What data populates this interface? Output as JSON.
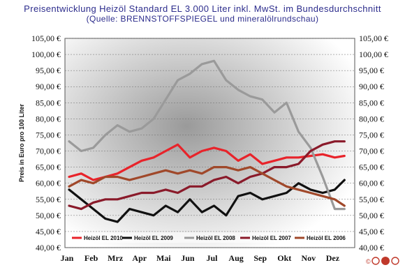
{
  "chart_data": {
    "type": "line",
    "title": "Preisentwicklung Heizöl Standard EL 3.000 Liter inkl. MwSt. im Bundesdurchschnitt",
    "subtitle": "(Quelle: BRENNSTOFFSPIEGEL und mineralölrundschau)",
    "ylabel": "Preis in Euro pro 100 Liter",
    "xlabel": "",
    "categories": [
      "Jan",
      "Feb",
      "Mrz",
      "Apr",
      "Mai",
      "Jun",
      "Jul",
      "Aug",
      "Sep",
      "Okt",
      "Nov",
      "Dez"
    ],
    "y_ticks": [
      "40,00 €",
      "45,00 €",
      "50,00 €",
      "55,00 €",
      "60,00 €",
      "65,00 €",
      "70,00 €",
      "75,00 €",
      "80,00 €",
      "85,00 €",
      "90,00 €",
      "95,00 €",
      "100,00 €",
      "105,00 €"
    ],
    "ylim": [
      40,
      105
    ],
    "grid": true,
    "legend_position": "bottom-inside",
    "logo_text": "©",
    "series": [
      {
        "name": "Heizöl EL 2010",
        "color": "#e8232a",
        "x": [
          0,
          0.5,
          1,
          1.5,
          2,
          2.5,
          3,
          3.5,
          4,
          4.5,
          5,
          5.5,
          6,
          6.5,
          7,
          7.5,
          8,
          8.5,
          9,
          9.5,
          10,
          10.5,
          11,
          11.4
        ],
        "values": [
          62,
          63,
          61,
          62,
          63,
          65,
          67,
          68,
          70,
          72,
          68,
          70,
          71,
          70,
          67,
          69,
          66,
          67,
          68,
          68,
          68.5,
          69,
          68,
          68.5
        ]
      },
      {
        "name": "Heizöl EL 2009",
        "color": "#111111",
        "x": [
          0,
          0.5,
          1,
          1.5,
          2,
          2.5,
          3,
          3.5,
          4,
          4.5,
          5,
          5.5,
          6,
          6.5,
          7,
          7.5,
          8,
          8.5,
          9,
          9.5,
          10,
          10.5,
          11,
          11.4
        ],
        "values": [
          58,
          55,
          52,
          49,
          48,
          52,
          51,
          50,
          53,
          51,
          55,
          51,
          53,
          50,
          56,
          57,
          55,
          56,
          57,
          60,
          58,
          57,
          58,
          61
        ]
      },
      {
        "name": "Heizöl EL 2008",
        "color": "#9a9a9a",
        "x": [
          0,
          0.5,
          1,
          1.5,
          2,
          2.5,
          3,
          3.5,
          4,
          4.5,
          5,
          5.5,
          6,
          6.5,
          7,
          7.5,
          8,
          8.5,
          9,
          9.5,
          10,
          10.5,
          11,
          11.4
        ],
        "values": [
          73,
          70,
          71,
          75,
          78,
          76,
          77,
          80,
          86,
          92,
          94,
          97,
          98,
          92,
          89,
          87,
          86,
          82,
          85,
          76,
          71,
          62,
          52,
          52
        ]
      },
      {
        "name": "Heizöl EL 2007",
        "color": "#8a1a2a",
        "x": [
          0,
          0.5,
          1,
          1.5,
          2,
          2.5,
          3,
          3.5,
          4,
          4.5,
          5,
          5.5,
          6,
          6.5,
          7,
          7.5,
          8,
          8.5,
          9,
          9.5,
          10,
          10.5,
          11,
          11.4
        ],
        "values": [
          53,
          52,
          54,
          55,
          55,
          56,
          57,
          57,
          58,
          57,
          59,
          59,
          61,
          62,
          60,
          62,
          63,
          65,
          65,
          66,
          70,
          72,
          73,
          73
        ]
      },
      {
        "name": "Heizöl EL 2006",
        "color": "#a0482a",
        "x": [
          0,
          0.5,
          1,
          1.5,
          2,
          2.5,
          3,
          3.5,
          4,
          4.5,
          5,
          5.5,
          6,
          6.5,
          7,
          7.5,
          8,
          8.5,
          9,
          9.5,
          10,
          10.5,
          11,
          11.4
        ],
        "values": [
          59,
          61,
          60,
          62,
          62,
          61,
          62,
          63,
          64,
          63,
          64,
          63,
          65,
          65,
          64,
          65,
          63,
          61,
          59,
          58,
          57,
          56,
          55,
          53
        ]
      }
    ]
  }
}
